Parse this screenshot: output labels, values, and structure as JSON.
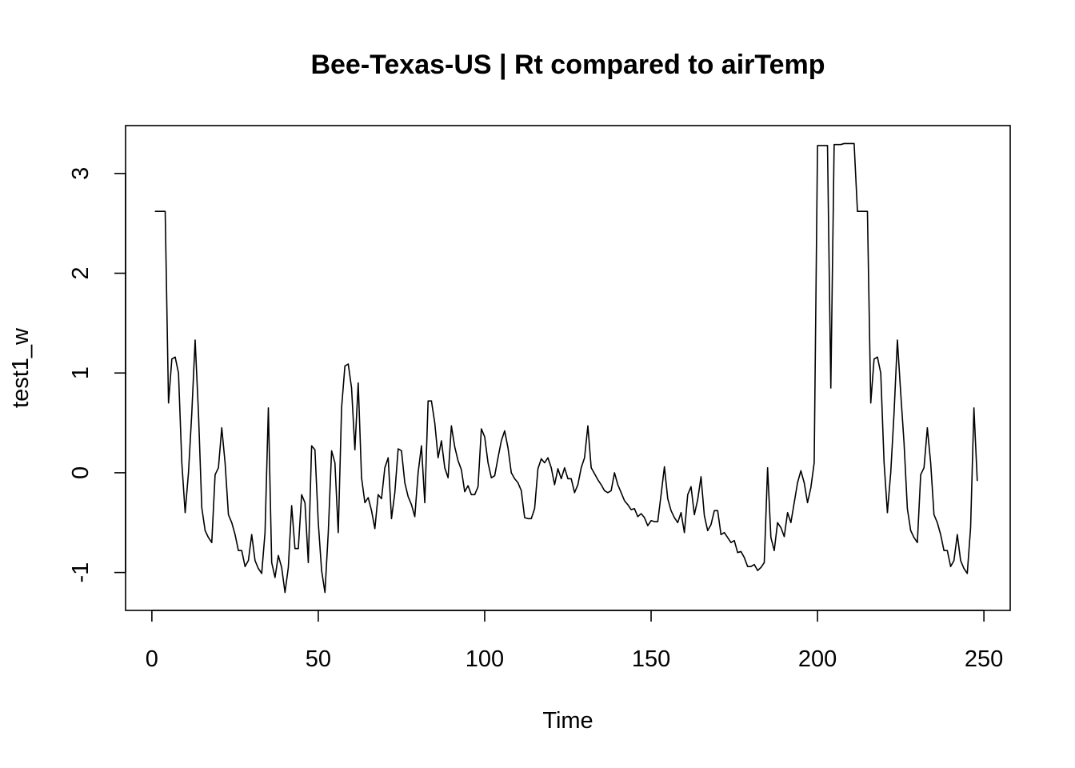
{
  "chart_data": {
    "type": "line",
    "title": "Bee-Texas-US | Rt compared to airTemp",
    "xlabel": "Time",
    "ylabel": "test1_w",
    "xlim": [
      -7.9,
      257.9
    ],
    "ylim": [
      -1.38,
      3.48
    ],
    "grid": false,
    "x_ticks": [
      0,
      50,
      100,
      150,
      200,
      250
    ],
    "y_ticks": [
      -1,
      0,
      1,
      2,
      3
    ],
    "x_tick_labels": [
      "0",
      "50",
      "100",
      "150",
      "200",
      "250"
    ],
    "y_tick_labels": [
      "-1",
      "0",
      "1",
      "2",
      "3"
    ],
    "series": [
      {
        "x_start": 1,
        "values": [
          2.62,
          2.62,
          2.62,
          2.62,
          0.7,
          1.14,
          1.16,
          1.0,
          0.1,
          -0.4,
          0.0,
          0.6,
          1.33,
          0.6,
          -0.35,
          -0.58,
          -0.65,
          -0.7,
          -0.02,
          0.05,
          0.45,
          0.1,
          -0.42,
          -0.5,
          -0.62,
          -0.78,
          -0.78,
          -0.94,
          -0.88,
          -0.62,
          -0.88,
          -0.96,
          -1.01,
          -0.6,
          0.65,
          -0.9,
          -1.05,
          -0.83,
          -0.95,
          -1.2,
          -0.95,
          -0.33,
          -0.76,
          -0.76,
          -0.22,
          -0.3,
          -0.9,
          0.27,
          0.23,
          -0.5,
          -0.98,
          -1.2,
          -0.6,
          0.22,
          0.1,
          -0.6,
          0.65,
          1.07,
          1.09,
          0.85,
          0.23,
          0.9,
          -0.05,
          -0.3,
          -0.25,
          -0.38,
          -0.56,
          -0.22,
          -0.26,
          0.05,
          0.15,
          -0.46,
          -0.2,
          0.24,
          0.22,
          -0.1,
          -0.24,
          -0.32,
          -0.44,
          0.0,
          0.27,
          -0.3,
          0.72,
          0.72,
          0.5,
          0.15,
          0.32,
          0.05,
          -0.05,
          0.47,
          0.26,
          0.12,
          0.03,
          -0.19,
          -0.13,
          -0.22,
          -0.22,
          -0.14,
          0.44,
          0.36,
          0.1,
          -0.05,
          -0.03,
          0.15,
          0.32,
          0.42,
          0.25,
          0.0,
          -0.06,
          -0.1,
          -0.18,
          -0.45,
          -0.46,
          -0.46,
          -0.36,
          0.04,
          0.14,
          0.1,
          0.15,
          0.05,
          -0.12,
          0.04,
          -0.06,
          0.05,
          -0.06,
          -0.06,
          -0.2,
          -0.12,
          0.05,
          0.15,
          0.47,
          0.05,
          -0.01,
          -0.07,
          -0.12,
          -0.18,
          -0.2,
          -0.18,
          0.0,
          -0.12,
          -0.2,
          -0.28,
          -0.32,
          -0.37,
          -0.36,
          -0.44,
          -0.41,
          -0.45,
          -0.53,
          -0.48,
          -0.49,
          -0.49,
          -0.22,
          0.06,
          -0.26,
          -0.38,
          -0.45,
          -0.5,
          -0.4,
          -0.6,
          -0.22,
          -0.14,
          -0.42,
          -0.27,
          -0.04,
          -0.43,
          -0.58,
          -0.52,
          -0.38,
          -0.38,
          -0.62,
          -0.6,
          -0.65,
          -0.7,
          -0.68,
          -0.8,
          -0.79,
          -0.85,
          -0.94,
          -0.94,
          -0.92,
          -0.98,
          -0.95,
          -0.9,
          0.05,
          -0.65,
          -0.78,
          -0.5,
          -0.55,
          -0.64,
          -0.4,
          -0.5,
          -0.3,
          -0.1,
          0.02,
          -0.1,
          -0.3,
          -0.15,
          0.1,
          3.28,
          3.28,
          3.28,
          3.28,
          0.85,
          3.29,
          3.29,
          3.29,
          3.3,
          3.3,
          3.3,
          3.3,
          2.62,
          2.62,
          2.62,
          2.62,
          0.7,
          1.14,
          1.16,
          1.0,
          0.1,
          -0.4,
          0.0,
          0.6,
          1.33,
          0.8,
          0.3,
          -0.36,
          -0.58,
          -0.65,
          -0.7,
          -0.02,
          0.05,
          0.45,
          0.1,
          -0.42,
          -0.5,
          -0.62,
          -0.78,
          -0.78,
          -0.94,
          -0.88,
          -0.62,
          -0.88,
          -0.96,
          -1.01,
          -0.55,
          0.65,
          -0.08
        ]
      }
    ]
  }
}
